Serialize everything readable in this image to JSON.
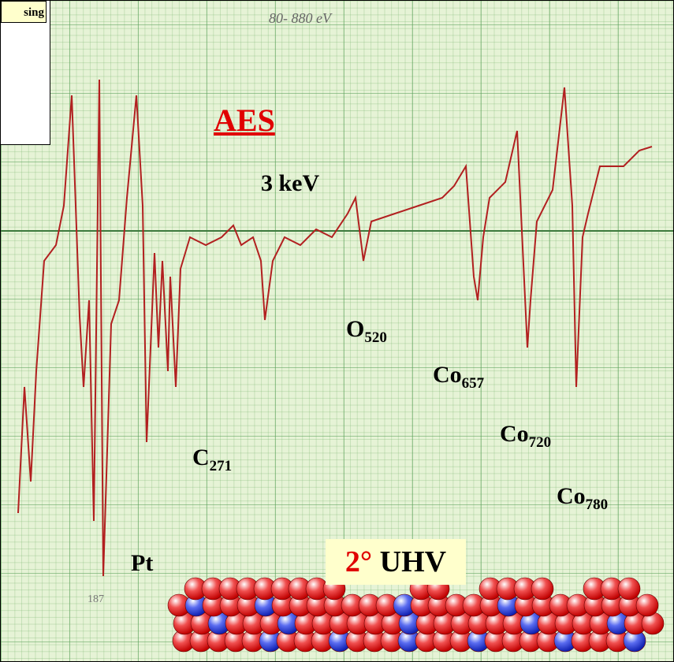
{
  "corner_label": "sing",
  "handwritten_range": "80- 880 eV",
  "title": "AES",
  "beam_energy": "3 keV",
  "peaks": [
    {
      "symbol": "O",
      "energy": "520"
    },
    {
      "symbol": "Co",
      "energy": "657"
    },
    {
      "symbol": "Co",
      "energy": "720"
    },
    {
      "symbol": "Co",
      "energy": "780"
    },
    {
      "symbol": "C",
      "energy": "271"
    }
  ],
  "pt_label": "Pt",
  "handwritten_mark": "187",
  "condition": {
    "prefix": "2°",
    "text": "UHV"
  }
}
